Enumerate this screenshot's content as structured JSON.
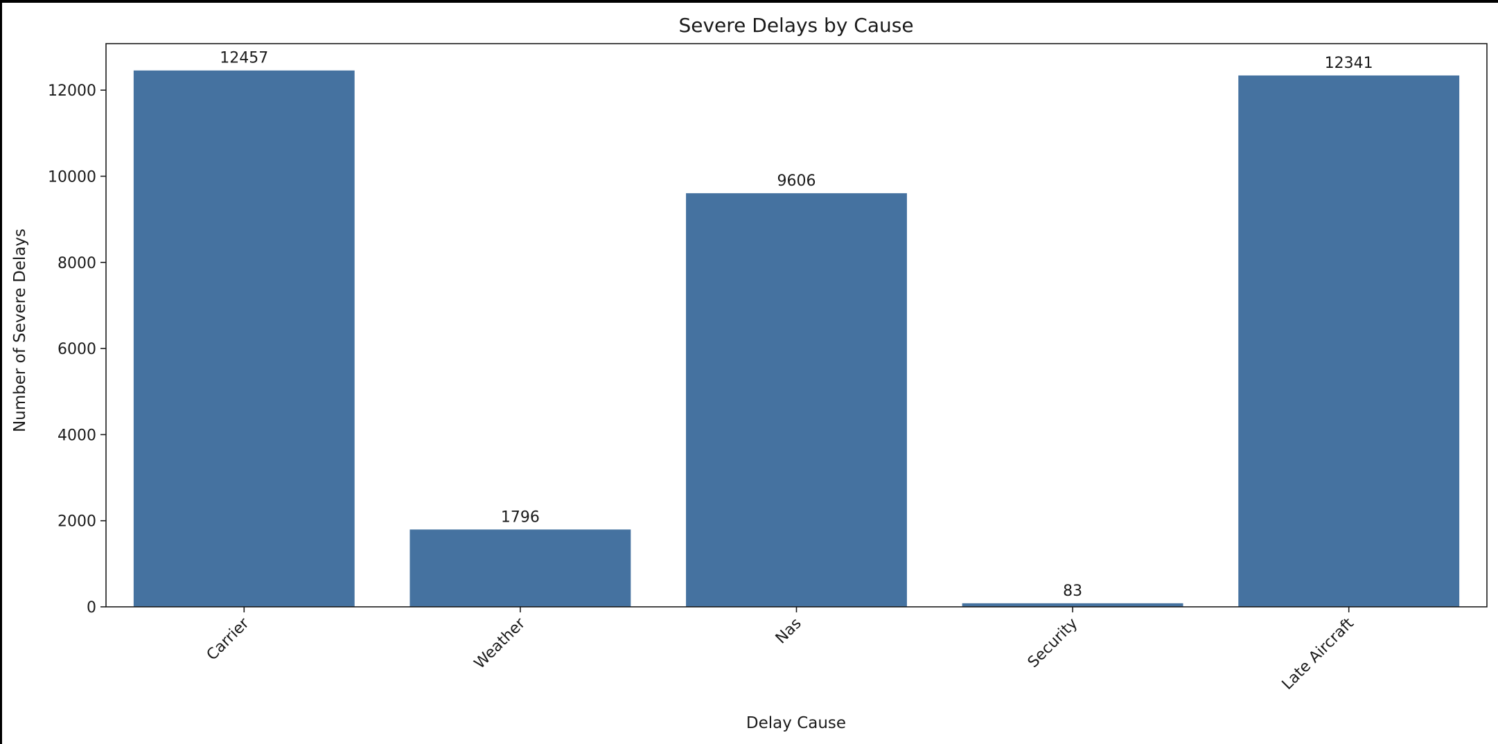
{
  "chart_data": {
    "type": "bar",
    "title": "Severe Delays by Cause",
    "xlabel": "Delay Cause",
    "ylabel": "Number of Severe Delays",
    "categories": [
      "Carrier",
      "Weather",
      "Nas",
      "Security",
      "Late Aircraft"
    ],
    "values": [
      12457,
      1796,
      9606,
      83,
      12341
    ],
    "data_labels": [
      "12457",
      "1796",
      "9606",
      "83",
      "12341"
    ],
    "yticks": [
      0,
      2000,
      4000,
      6000,
      8000,
      10000,
      12000
    ],
    "ytick_labels": [
      "0",
      "2000",
      "4000",
      "6000",
      "8000",
      "10000",
      "12000"
    ],
    "ylim": [
      0,
      13080
    ],
    "grid": false,
    "legend": "none",
    "bar_color": "#4572a0",
    "axis_color": "#1a1a1a"
  }
}
